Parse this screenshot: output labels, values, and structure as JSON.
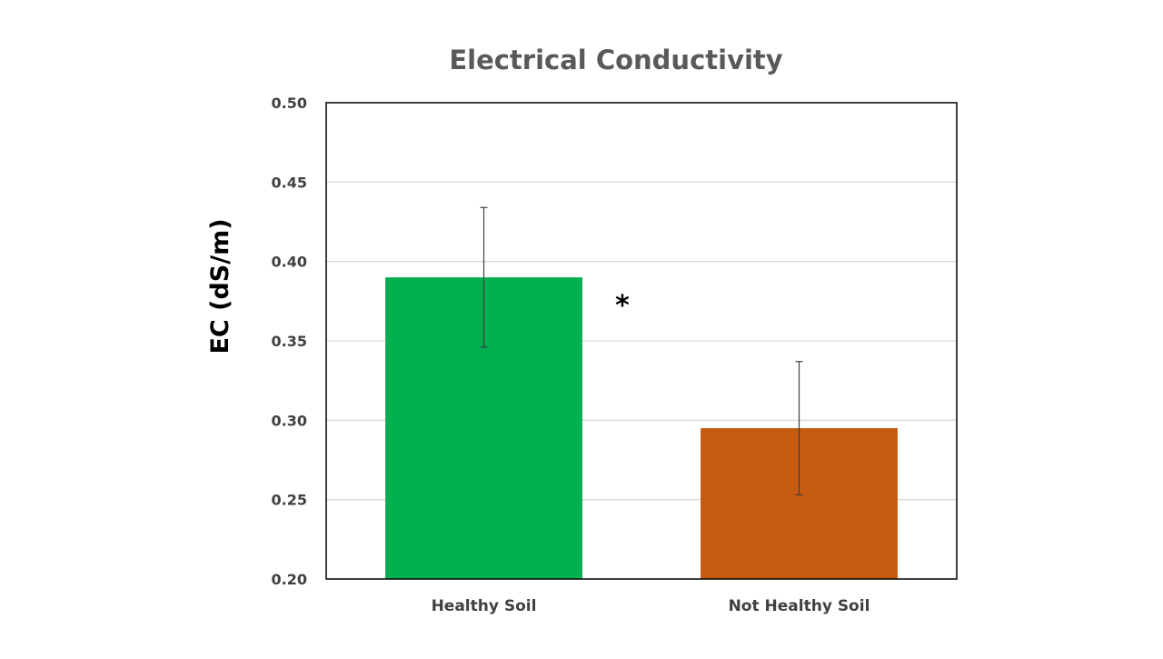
{
  "chart_data": {
    "type": "bar",
    "title": "Electrical Conductivity",
    "xlabel": "",
    "ylabel": "EC (dS/m)",
    "categories": [
      "Healthy Soil",
      "Not Healthy Soil"
    ],
    "values": [
      0.39,
      0.295
    ],
    "error_bars": [
      {
        "low": 0.346,
        "high": 0.434
      },
      {
        "low": 0.253,
        "high": 0.337
      }
    ],
    "colors": [
      "#00B050",
      "#C55A11"
    ],
    "ylim": [
      0.2,
      0.5
    ],
    "yticks": [
      "0.50",
      "0.45",
      "0.40",
      "0.35",
      "0.30",
      "0.25",
      "0.20"
    ],
    "ytick_values": [
      0.5,
      0.45,
      0.4,
      0.35,
      0.3,
      0.25,
      0.2
    ],
    "grid": true,
    "legend": "none",
    "annotations": [
      "*"
    ]
  }
}
